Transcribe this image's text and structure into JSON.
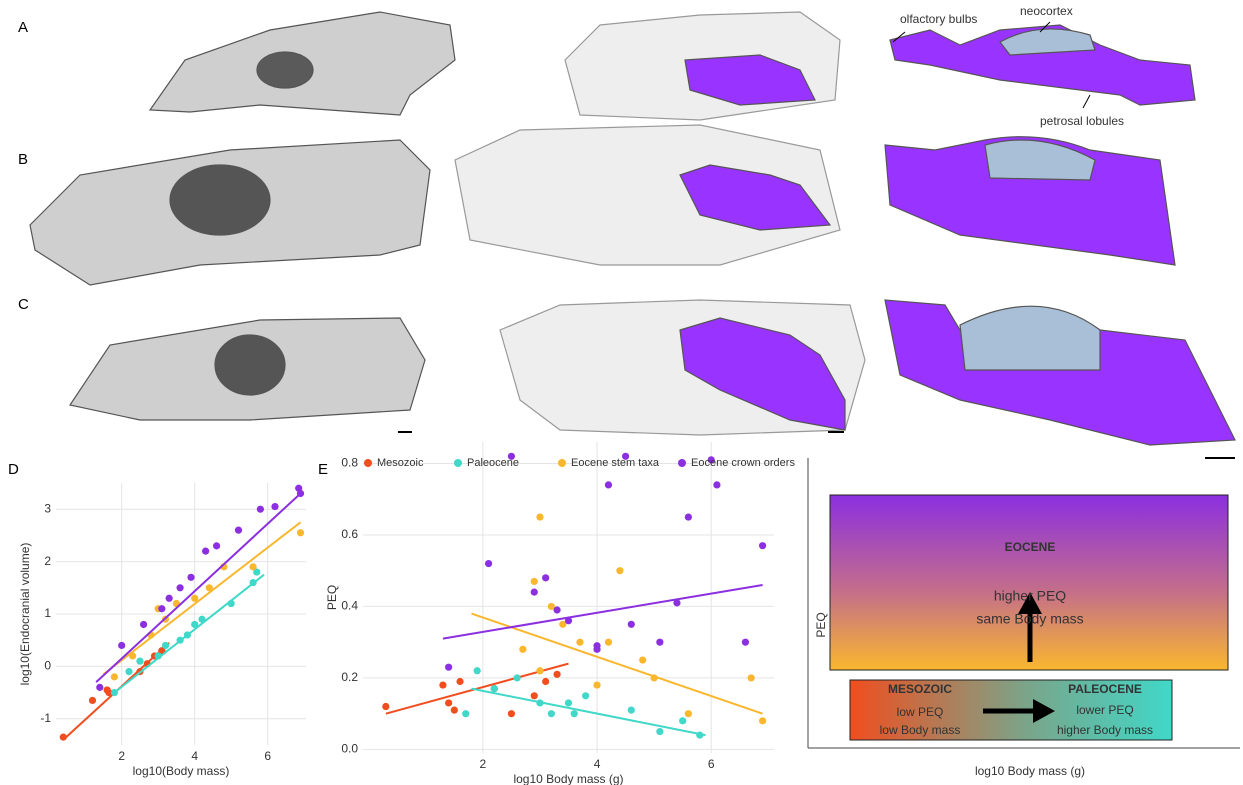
{
  "figure": {
    "panel_labels": [
      "A",
      "B",
      "C",
      "D",
      "E"
    ],
    "annotations": {
      "olfactory": "olfactory bulbs",
      "neocortex": "neocortex",
      "petrosal": "petrosal lobules"
    }
  },
  "chart_data": [
    {
      "type": "scatter",
      "xlabel": "log10(Body mass)",
      "ylabel": "log10(Endocranial volume)",
      "xlim": [
        0.2,
        7.05
      ],
      "ylim": [
        -1.5,
        3.5
      ],
      "xticks": [
        2,
        4,
        6
      ],
      "yticks": [
        -1,
        0,
        1,
        2,
        3
      ],
      "grid": true,
      "series": [
        {
          "color": "#f04e1e",
          "x": [
            0.4,
            1.2,
            1.6,
            1.65,
            2.5,
            2.9,
            3.1,
            2.7
          ],
          "y": [
            -1.35,
            -0.65,
            -0.45,
            -0.5,
            -0.1,
            0.2,
            0.3,
            0.05
          ],
          "fit": {
            "x": [
              0.4,
              3.3
            ],
            "y": [
              -1.4,
              0.45
            ]
          }
        },
        {
          "color": "#40d8c8",
          "x": [
            1.8,
            2.2,
            2.5,
            3.0,
            3.2,
            3.6,
            3.8,
            4.0,
            4.2,
            5.0,
            5.6,
            5.7
          ],
          "y": [
            -0.5,
            -0.1,
            0.1,
            0.2,
            0.4,
            0.5,
            0.6,
            0.8,
            0.9,
            1.2,
            1.6,
            1.8
          ],
          "fit": {
            "x": [
              1.8,
              5.9
            ],
            "y": [
              -0.5,
              1.75
            ]
          }
        },
        {
          "color": "#f9b72e",
          "x": [
            1.8,
            2.3,
            2.8,
            3.0,
            3.2,
            3.5,
            4.0,
            4.4,
            4.8,
            5.6,
            6.9
          ],
          "y": [
            -0.2,
            0.2,
            0.6,
            1.1,
            0.9,
            1.2,
            1.3,
            1.5,
            1.9,
            1.9,
            2.55
          ],
          "fit": {
            "x": [
              1.5,
              6.9
            ],
            "y": [
              -0.15,
              2.75
            ]
          }
        },
        {
          "color": "#8b2fe0",
          "x": [
            1.4,
            2.0,
            2.6,
            3.1,
            3.3,
            3.6,
            3.9,
            4.3,
            4.6,
            5.2,
            5.8,
            6.2,
            6.85,
            6.9
          ],
          "y": [
            -0.4,
            0.4,
            0.8,
            1.1,
            1.3,
            1.5,
            1.7,
            2.2,
            2.3,
            2.6,
            3.0,
            3.05,
            3.4,
            3.3
          ],
          "fit": {
            "x": [
              1.3,
              6.9
            ],
            "y": [
              -0.3,
              3.3
            ]
          }
        }
      ]
    },
    {
      "type": "scatter",
      "xlabel": "log10 Body mass (g)",
      "ylabel": "PEQ",
      "xlim": [
        -0.1,
        7.1
      ],
      "ylim": [
        -0.01,
        0.86
      ],
      "xticks": [
        2,
        4,
        6
      ],
      "yticks": [
        {
          "value": 0,
          "label": "0.0"
        },
        0.2,
        0.4,
        0.6,
        0.8
      ],
      "grid": true,
      "legend": "top",
      "series": [
        {
          "name": "Mesozoic",
          "color": "#f04e1e",
          "x": [
            0.3,
            1.3,
            1.4,
            1.5,
            1.6,
            2.2,
            2.5,
            2.9,
            3.1,
            3.3
          ],
          "y": [
            0.12,
            0.18,
            0.13,
            0.11,
            0.19,
            0.17,
            0.1,
            0.15,
            0.19,
            0.21
          ],
          "fit": {
            "x": [
              0.3,
              3.5
            ],
            "y": [
              0.1,
              0.24
            ]
          }
        },
        {
          "name": "Paleocene",
          "color": "#40d8c8",
          "x": [
            1.7,
            1.9,
            2.2,
            2.6,
            3.0,
            3.2,
            3.5,
            3.6,
            3.8,
            4.6,
            5.1,
            5.5,
            5.8
          ],
          "y": [
            0.1,
            0.22,
            0.17,
            0.2,
            0.13,
            0.1,
            0.13,
            0.1,
            0.15,
            0.11,
            0.05,
            0.08,
            0.04
          ],
          "fit": {
            "x": [
              1.8,
              5.9
            ],
            "y": [
              0.17,
              0.04
            ]
          }
        },
        {
          "name": "Eocene stem taxa",
          "color": "#f9b72e",
          "x": [
            2.7,
            2.9,
            3.0,
            3.0,
            3.2,
            3.4,
            3.7,
            4.0,
            4.2,
            4.4,
            4.8,
            5.0,
            5.6,
            6.7,
            6.9
          ],
          "y": [
            0.28,
            0.47,
            0.65,
            0.22,
            0.4,
            0.35,
            0.3,
            0.18,
            0.3,
            0.5,
            0.25,
            0.2,
            0.1,
            0.2,
            0.08
          ],
          "fit": {
            "x": [
              1.8,
              6.9
            ],
            "y": [
              0.38,
              0.1
            ]
          }
        },
        {
          "name": "Eocene crown orders",
          "color": "#8b2fe0",
          "x": [
            1.4,
            2.1,
            2.5,
            2.9,
            3.1,
            3.3,
            3.5,
            4.0,
            4.0,
            4.2,
            4.5,
            4.6,
            5.1,
            5.4,
            5.6,
            6.0,
            6.1,
            6.6,
            6.9
          ],
          "y": [
            0.23,
            0.52,
            0.82,
            0.44,
            0.48,
            0.39,
            0.36,
            0.29,
            0.28,
            0.74,
            0.82,
            0.35,
            0.3,
            0.41,
            0.65,
            0.81,
            0.74,
            0.3,
            0.57
          ],
          "fit": {
            "x": [
              1.3,
              6.9
            ],
            "y": [
              0.31,
              0.46
            ]
          }
        }
      ]
    }
  ],
  "diagram": {
    "ylabel": "PEQ",
    "xlabel": "log10 Body mass (g)",
    "eocene": {
      "title": "EOCENE",
      "line1": "higher PEQ",
      "line2": "same Body mass"
    },
    "mesozoic": {
      "title": "MESOZOIC",
      "line1": "low PEQ",
      "line2": "low Body mass"
    },
    "paleocene": {
      "title": "PALEOCENE",
      "line1": "lower PEQ",
      "line2": "higher Body mass"
    }
  }
}
